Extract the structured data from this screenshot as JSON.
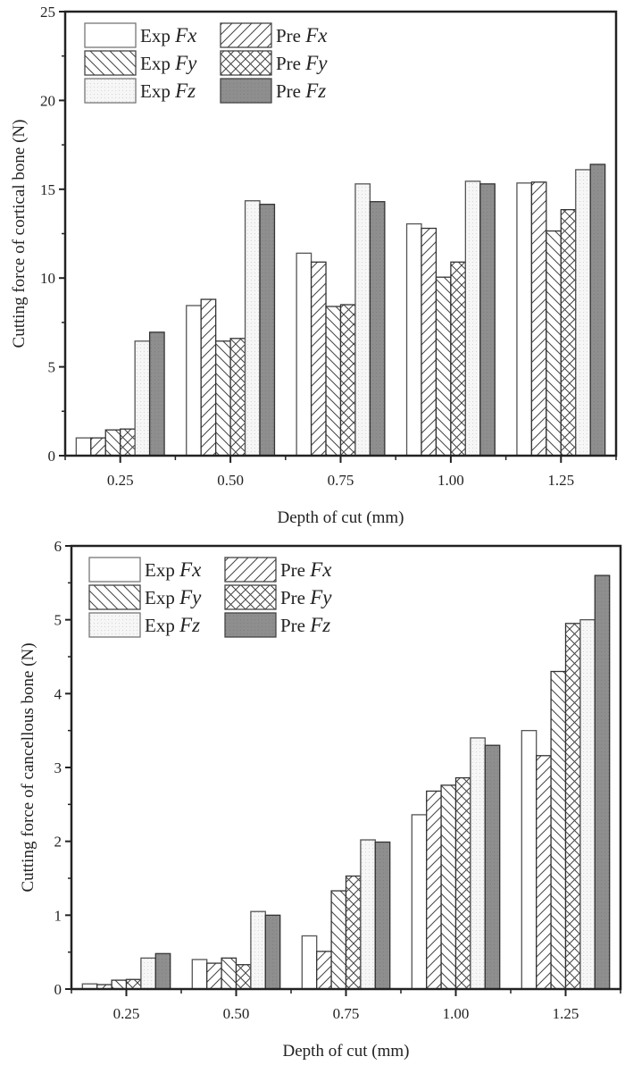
{
  "chart_data": [
    {
      "type": "bar",
      "title": "",
      "xlabel": "Depth of cut (mm)",
      "ylabel": "Cutting force of cortical bone (N)",
      "categories": [
        "0.25",
        "0.50",
        "0.75",
        "1.00",
        "1.25"
      ],
      "x_values": [
        0.25,
        0.5,
        0.75,
        1.0,
        1.25
      ],
      "xlim": [
        0.125,
        1.375
      ],
      "ylim": [
        0,
        25
      ],
      "yticks": [
        0,
        5,
        10,
        15,
        20,
        25
      ],
      "yticks_labels": [
        "0",
        "5",
        "10",
        "15",
        "20",
        "25"
      ],
      "grid": false,
      "legend_position": "top-left",
      "series": [
        {
          "name": "Exp Fx",
          "label_prefix": "Exp",
          "label_var": "Fx",
          "pattern": "blank",
          "values": [
            1.0,
            8.45,
            11.4,
            13.05,
            15.35
          ]
        },
        {
          "name": "Pre Fx",
          "label_prefix": "Pre",
          "label_var": "Fx",
          "pattern": "forward-hatch",
          "values": [
            1.0,
            8.8,
            10.9,
            12.8,
            15.4
          ]
        },
        {
          "name": "Exp Fy",
          "label_prefix": "Exp",
          "label_var": "Fy",
          "pattern": "back-hatch",
          "values": [
            1.45,
            6.45,
            8.4,
            10.05,
            12.65
          ]
        },
        {
          "name": "Pre Fy",
          "label_prefix": "Pre",
          "label_var": "Fy",
          "pattern": "cross-hatch",
          "values": [
            1.5,
            6.6,
            8.5,
            10.9,
            13.85
          ]
        },
        {
          "name": "Exp Fz",
          "label_prefix": "Exp",
          "label_var": "Fz",
          "pattern": "dots",
          "values": [
            6.45,
            14.35,
            15.3,
            15.45,
            16.1
          ]
        },
        {
          "name": "Pre Fz",
          "label_prefix": "Pre",
          "label_var": "Fz",
          "pattern": "solid-gray",
          "values": [
            6.95,
            14.15,
            14.3,
            15.3,
            16.4
          ]
        }
      ]
    },
    {
      "type": "bar",
      "title": "",
      "xlabel": "Depth of cut (mm)",
      "ylabel": "Cutting force of cancellous bone (N)",
      "categories": [
        "0.25",
        "0.50",
        "0.75",
        "1.00",
        "1.25"
      ],
      "x_values": [
        0.25,
        0.5,
        0.75,
        1.0,
        1.25
      ],
      "xlim": [
        0.125,
        1.375
      ],
      "ylim": [
        0,
        6
      ],
      "yticks": [
        0,
        1,
        2,
        3,
        4,
        5,
        6
      ],
      "yticks_labels": [
        "0",
        "1",
        "2",
        "3",
        "4",
        "5",
        "6"
      ],
      "grid": false,
      "legend_position": "top-left",
      "series": [
        {
          "name": "Exp Fx",
          "label_prefix": "Exp",
          "label_var": "Fx",
          "pattern": "blank",
          "values": [
            0.07,
            0.4,
            0.72,
            2.36,
            3.5
          ]
        },
        {
          "name": "Pre Fx",
          "label_prefix": "Pre",
          "label_var": "Fx",
          "pattern": "forward-hatch",
          "values": [
            0.06,
            0.35,
            0.51,
            2.68,
            3.16
          ]
        },
        {
          "name": "Exp Fy",
          "label_prefix": "Exp",
          "label_var": "Fy",
          "pattern": "back-hatch",
          "values": [
            0.12,
            0.42,
            1.33,
            2.76,
            4.3
          ]
        },
        {
          "name": "Pre Fy",
          "label_prefix": "Pre",
          "label_var": "Fy",
          "pattern": "cross-hatch",
          "values": [
            0.13,
            0.33,
            1.53,
            2.86,
            4.95
          ]
        },
        {
          "name": "Exp Fz",
          "label_prefix": "Exp",
          "label_var": "Fz",
          "pattern": "dots",
          "values": [
            0.42,
            1.05,
            2.02,
            3.4,
            5.0
          ]
        },
        {
          "name": "Pre Fz",
          "label_prefix": "Pre",
          "label_var": "Fz",
          "pattern": "solid-gray",
          "values": [
            0.48,
            1.0,
            1.99,
            3.3,
            5.6
          ]
        }
      ]
    }
  ],
  "colors": {
    "axis": "#222222",
    "bar_edge": "#333333",
    "hatch": "#444444",
    "solid_gray": "#8c8c8c",
    "dots_fill": "#f2f2f2"
  }
}
